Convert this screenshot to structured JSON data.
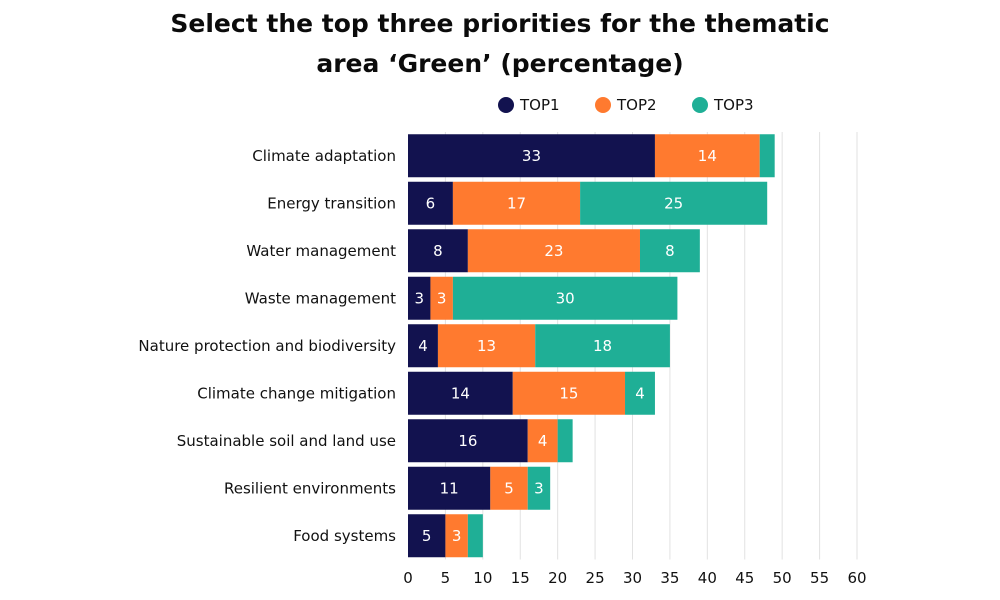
{
  "chart_data": {
    "type": "bar",
    "orientation": "horizontal",
    "stacked": true,
    "title_lines": [
      "Select the top three priorities for the thematic",
      "area ‘Green’ (percentage)"
    ],
    "categories": [
      "Climate adaptation",
      "Energy transition",
      "Water management",
      "Waste management",
      "Nature protection and biodiversity",
      "Climate change mitigation",
      "Sustainable soil and land use",
      "Resilient environments",
      "Food systems"
    ],
    "series": [
      {
        "name": "TOP1",
        "color": "#12124f",
        "values": [
          33,
          6,
          8,
          3,
          4,
          14,
          16,
          11,
          5
        ],
        "labels": [
          "33",
          "6",
          "8",
          "3",
          "4",
          "14",
          "16",
          "11",
          "5"
        ]
      },
      {
        "name": "TOP2",
        "color": "#ff7a2f",
        "values": [
          14,
          17,
          23,
          3,
          13,
          15,
          4,
          5,
          3
        ],
        "labels": [
          "14",
          "17",
          "23",
          "3",
          "13",
          "15",
          "4",
          "5",
          "3"
        ]
      },
      {
        "name": "TOP3",
        "color": "#1faf96",
        "values": [
          2,
          25,
          8,
          30,
          18,
          4,
          2,
          3,
          2
        ],
        "labels": [
          "",
          "25",
          "8",
          "30",
          "18",
          "4",
          "",
          "3",
          ""
        ]
      }
    ],
    "xlim": [
      0,
      60
    ],
    "xticks": [
      "0",
      "5",
      "10",
      "15",
      "20",
      "25",
      "30",
      "35",
      "40",
      "45",
      "50",
      "55",
      "60"
    ],
    "grid": true,
    "legend_position": "top"
  }
}
